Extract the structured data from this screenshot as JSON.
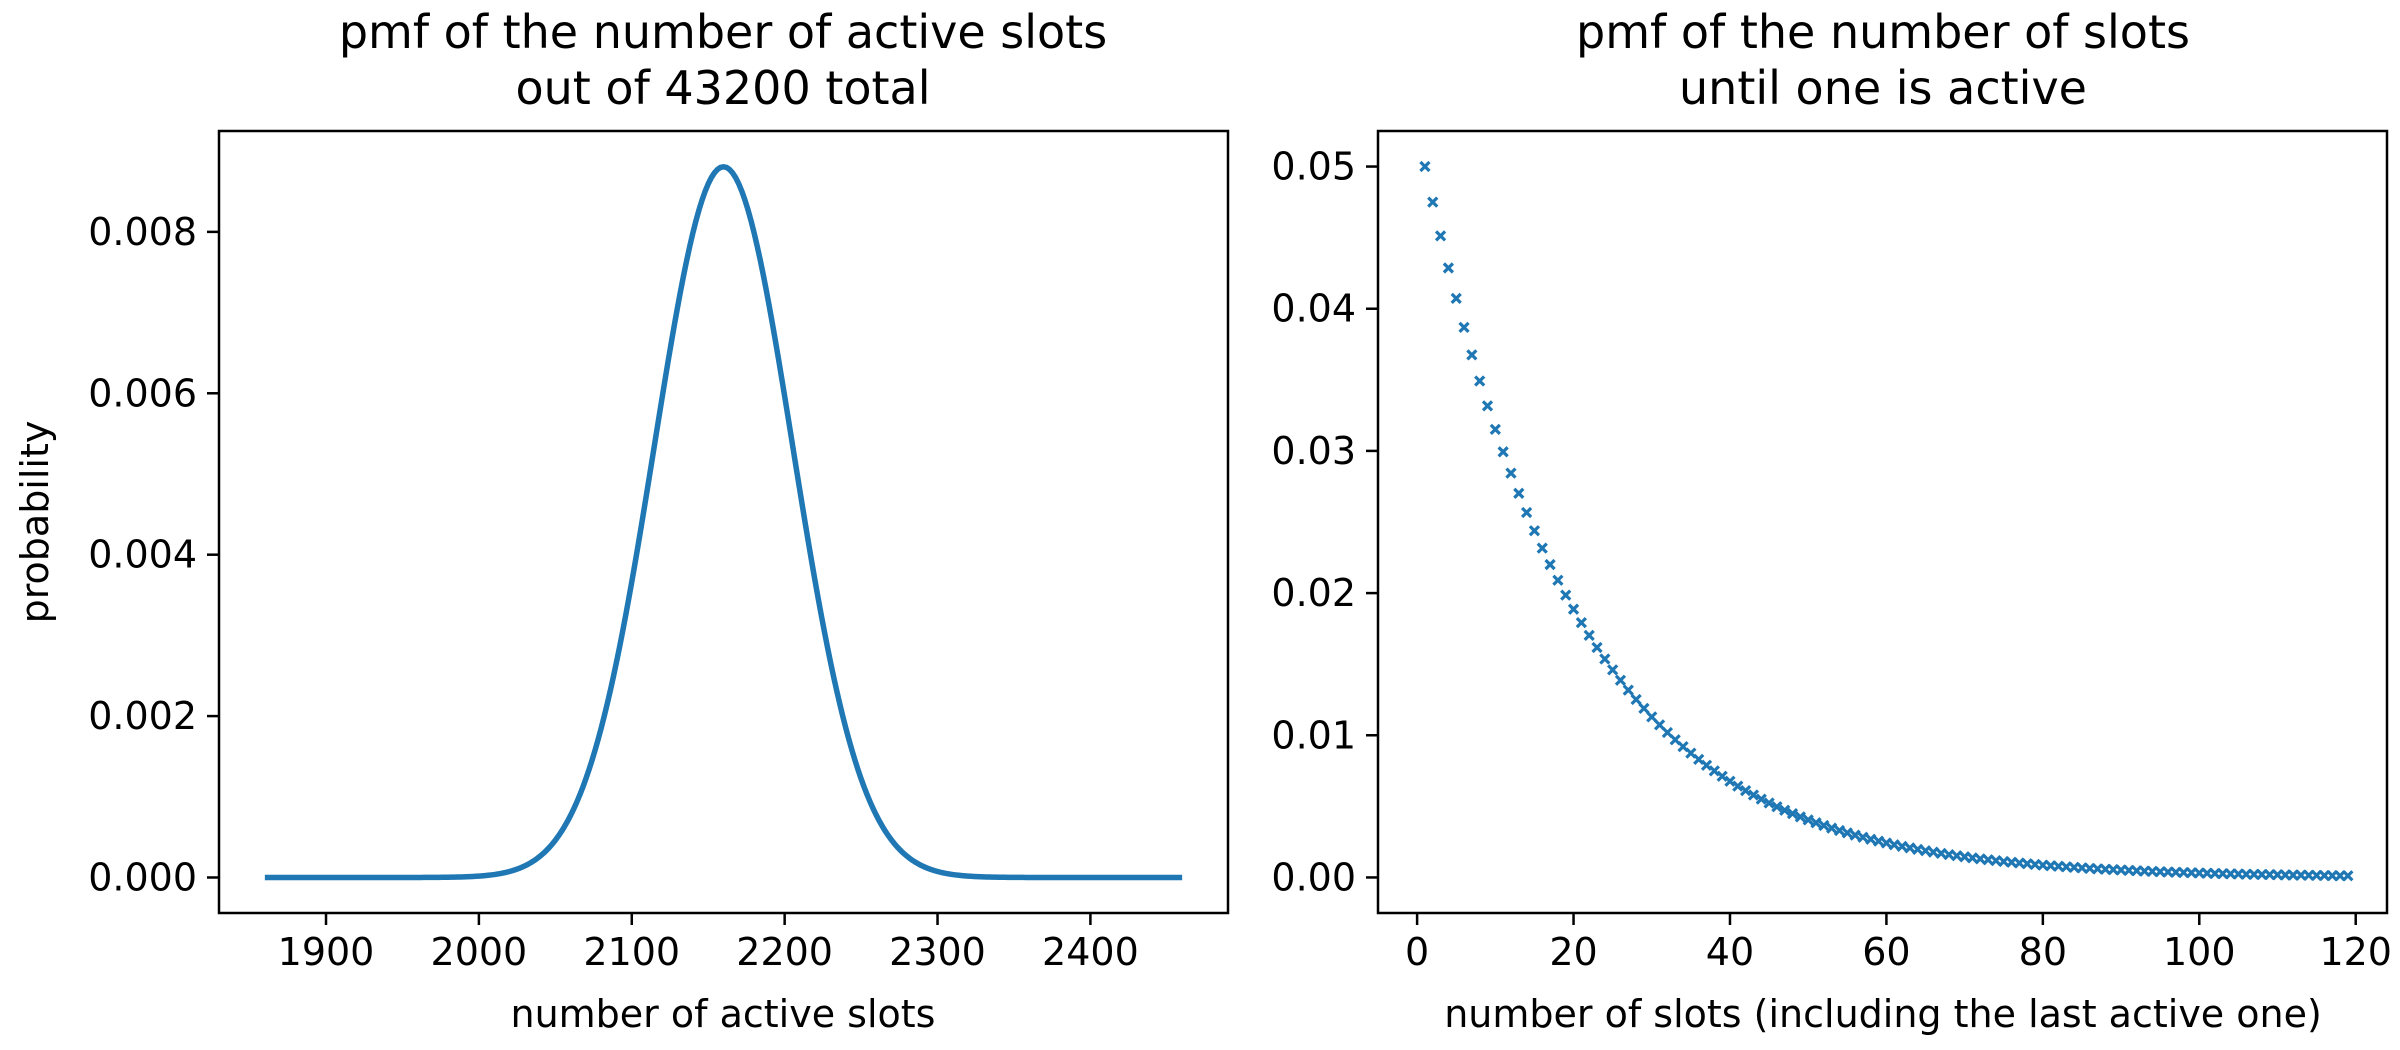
{
  "chart_data": [
    {
      "type": "line",
      "title_lines": [
        "pmf of the number of active slots",
        "out of 43200 total"
      ],
      "xlabel": "number of active slots",
      "ylabel": "probability",
      "xlim": [
        1830,
        2490
      ],
      "ylim": [
        -0.00044,
        0.00925
      ],
      "xticks": [
        1900,
        2000,
        2100,
        2200,
        2300,
        2400
      ],
      "xtick_labels": [
        "1900",
        "2000",
        "2100",
        "2200",
        "2300",
        "2400"
      ],
      "yticks": [
        0.0,
        0.002,
        0.004,
        0.006,
        0.008
      ],
      "ytick_labels": [
        "0.000",
        "0.002",
        "0.004",
        "0.006",
        "0.008"
      ],
      "color": "#1f77b4",
      "distribution": {
        "name": "binomial",
        "n": 43200,
        "p": 0.05
      },
      "x_range": [
        1860,
        2460
      ],
      "peak": {
        "x": 2160,
        "y": 0.00882
      }
    },
    {
      "type": "scatter",
      "marker": "x",
      "title_lines": [
        "pmf of the number of slots",
        "until one is active"
      ],
      "xlabel": "number of slots (including the last active one)",
      "ylabel": "",
      "xlim": [
        -5.0,
        124.0
      ],
      "ylim": [
        -0.0025,
        0.0525
      ],
      "xticks": [
        0,
        20,
        40,
        60,
        80,
        100,
        120
      ],
      "xtick_labels": [
        "0",
        "20",
        "40",
        "60",
        "80",
        "100",
        "120"
      ],
      "yticks": [
        0.0,
        0.01,
        0.02,
        0.03,
        0.04,
        0.05
      ],
      "ytick_labels": [
        "0.00",
        "0.01",
        "0.02",
        "0.03",
        "0.04",
        "0.05"
      ],
      "color": "#1f77b4",
      "distribution": {
        "name": "geometric",
        "p": 0.05
      },
      "x_range": [
        1,
        119
      ]
    }
  ]
}
